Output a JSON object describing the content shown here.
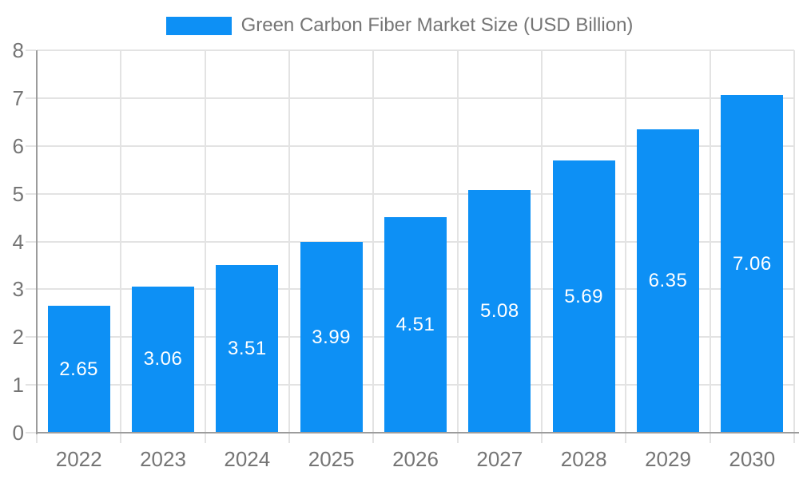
{
  "chart_data": {
    "type": "bar",
    "title": "Green Carbon Fiber Market Size (USD Billion)",
    "legend": {
      "label": "Green Carbon Fiber Market Size (USD Billion)",
      "position": "top-center"
    },
    "categories": [
      "2022",
      "2023",
      "2024",
      "2025",
      "2026",
      "2027",
      "2028",
      "2029",
      "2030"
    ],
    "series": [
      {
        "name": "Green Carbon Fiber Market Size (USD Billion)",
        "values": [
          2.65,
          3.06,
          3.51,
          3.99,
          4.51,
          5.08,
          5.69,
          6.35,
          7.06
        ]
      }
    ],
    "value_labels": [
      "2.65",
      "3.06",
      "3.51",
      "3.99",
      "4.51",
      "5.08",
      "5.69",
      "6.35",
      "7.06"
    ],
    "xlabel": "",
    "ylabel": "",
    "ylim": [
      0,
      8
    ],
    "yticks": [
      0,
      1,
      2,
      3,
      4,
      5,
      6,
      7,
      8
    ],
    "grid": true,
    "colors": {
      "bar": "#0D90F5",
      "bar_label": "#FFFFFF",
      "axis_line": "#9C9C9C",
      "grid_line": "#E3E3E3",
      "tick_label": "#757575",
      "legend_text": "#757575",
      "background": "#FFFFFF"
    }
  }
}
